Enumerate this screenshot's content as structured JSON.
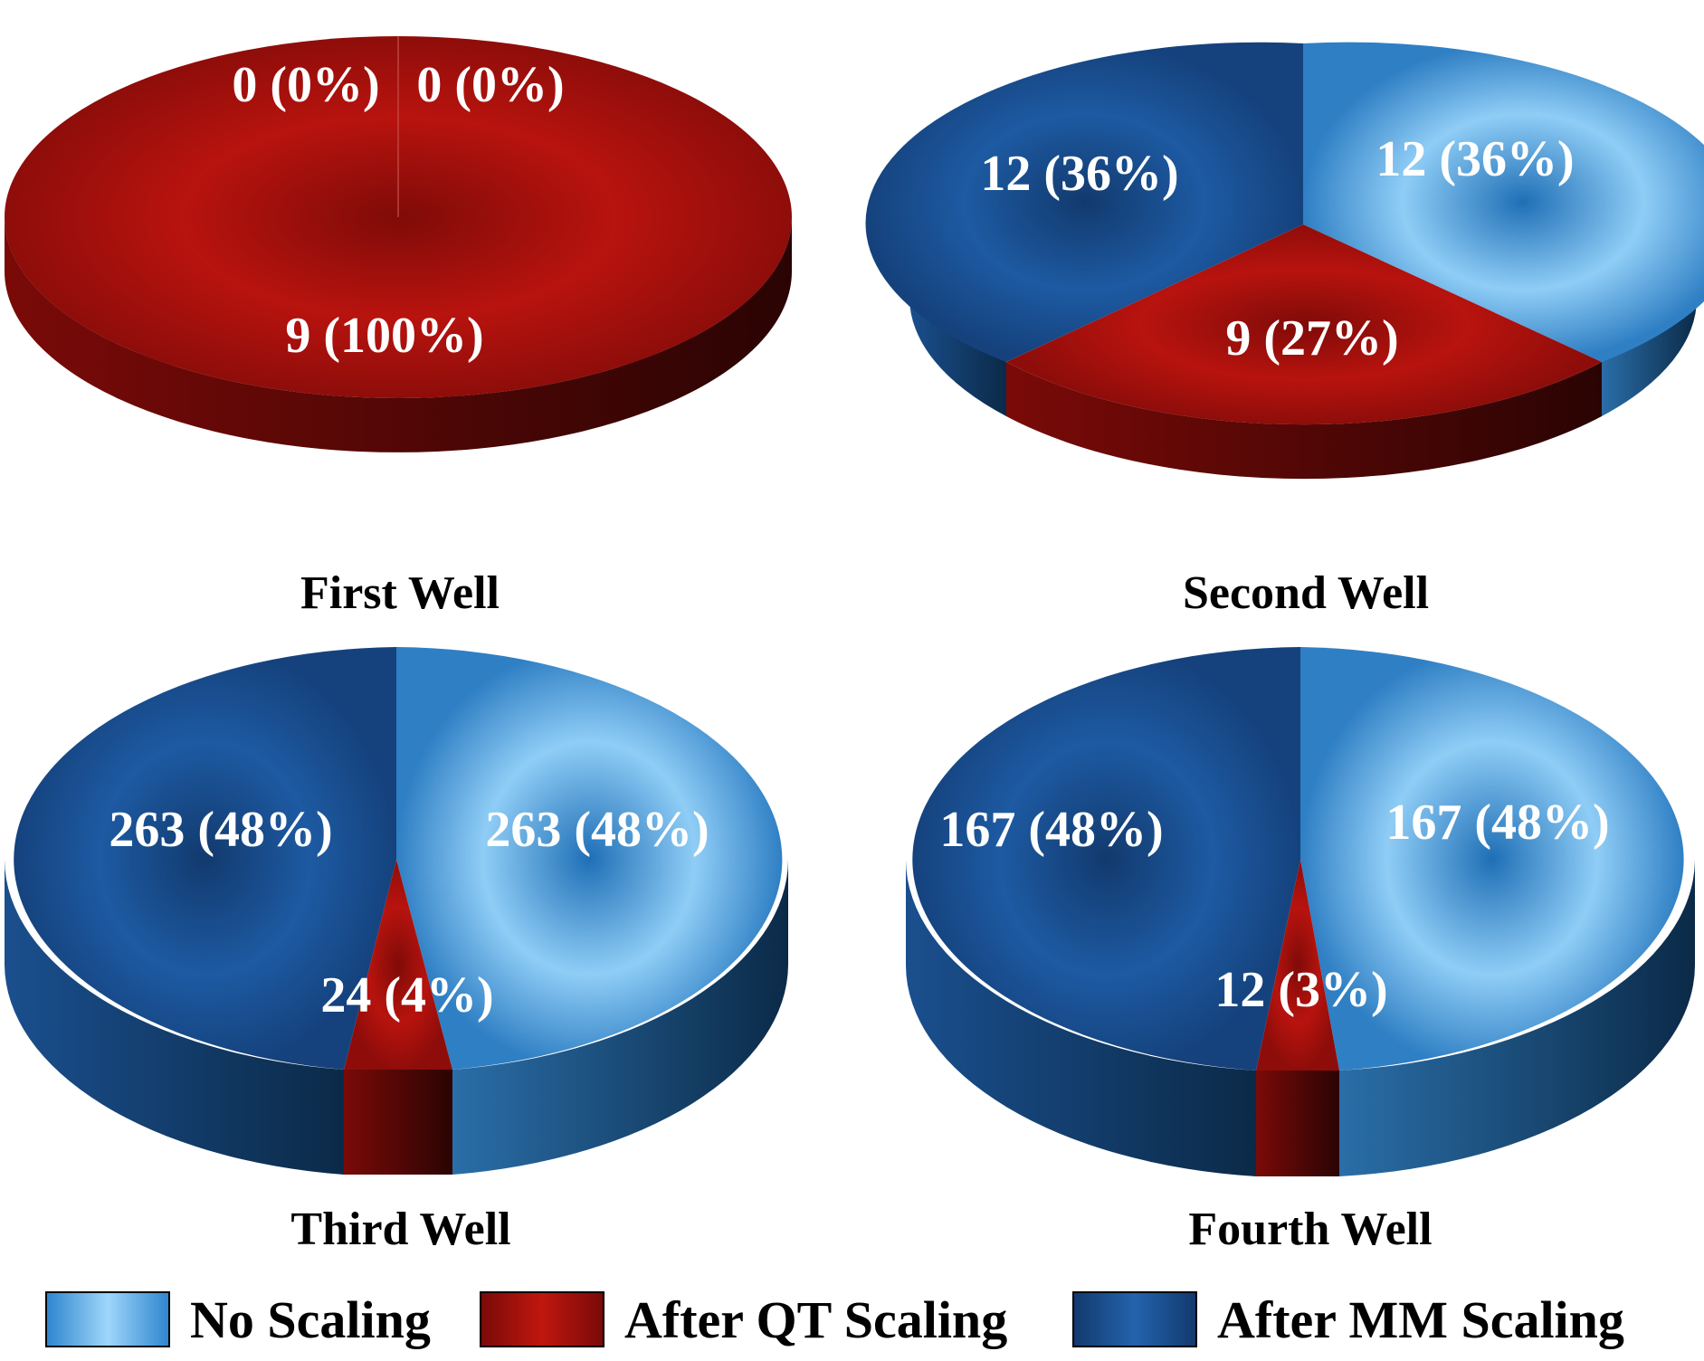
{
  "chart_data": [
    {
      "type": "pie",
      "title": "First Well",
      "slices": [
        {
          "series": "No Scaling",
          "value": 0,
          "percent": 0,
          "label": "0 (0%)"
        },
        {
          "series": "After QT Scaling",
          "value": 9,
          "percent": 100,
          "label": "9 (100%)"
        },
        {
          "series": "After MM Scaling",
          "value": 0,
          "percent": 0,
          "label": "0 (0%)"
        }
      ]
    },
    {
      "type": "pie",
      "title": "Second Well",
      "slices": [
        {
          "series": "No Scaling",
          "value": 12,
          "percent": 36,
          "label": "12 (36%)"
        },
        {
          "series": "After QT Scaling",
          "value": 9,
          "percent": 27,
          "label": "9 (27%)"
        },
        {
          "series": "After MM Scaling",
          "value": 12,
          "percent": 36,
          "label": "12 (36%)"
        }
      ]
    },
    {
      "type": "pie",
      "title": "Third Well",
      "slices": [
        {
          "series": "No Scaling",
          "value": 263,
          "percent": 48,
          "label": "263 (48%)"
        },
        {
          "series": "After QT Scaling",
          "value": 24,
          "percent": 4,
          "label": "24 (4%)"
        },
        {
          "series": "After MM Scaling",
          "value": 263,
          "percent": 48,
          "label": "263 (48%)"
        }
      ]
    },
    {
      "type": "pie",
      "title": "Fourth Well",
      "slices": [
        {
          "series": "No Scaling",
          "value": 167,
          "percent": 48,
          "label": "167 (48%)"
        },
        {
          "series": "After QT Scaling",
          "value": 12,
          "percent": 3,
          "label": "12 (3%)"
        },
        {
          "series": "After MM Scaling",
          "value": 167,
          "percent": 48,
          "label": "167 (48%)"
        }
      ]
    }
  ],
  "legend": {
    "placement": "bottom",
    "items": [
      {
        "label": "No Scaling",
        "color": "#4fa6e2"
      },
      {
        "label": "After QT Scaling",
        "color": "#a3130f"
      },
      {
        "label": "After MM Scaling",
        "color": "#1c4f94"
      }
    ]
  },
  "colors": {
    "no_scaling_light": "#8fcdf6",
    "no_scaling_dark": "#2f7fc4",
    "qt_light": "#b8130e",
    "qt_dark": "#7a0a08",
    "mm_light": "#1d5aa2",
    "mm_dark": "#15417a",
    "label_text": "#ffffff",
    "title_text": "#000000"
  }
}
